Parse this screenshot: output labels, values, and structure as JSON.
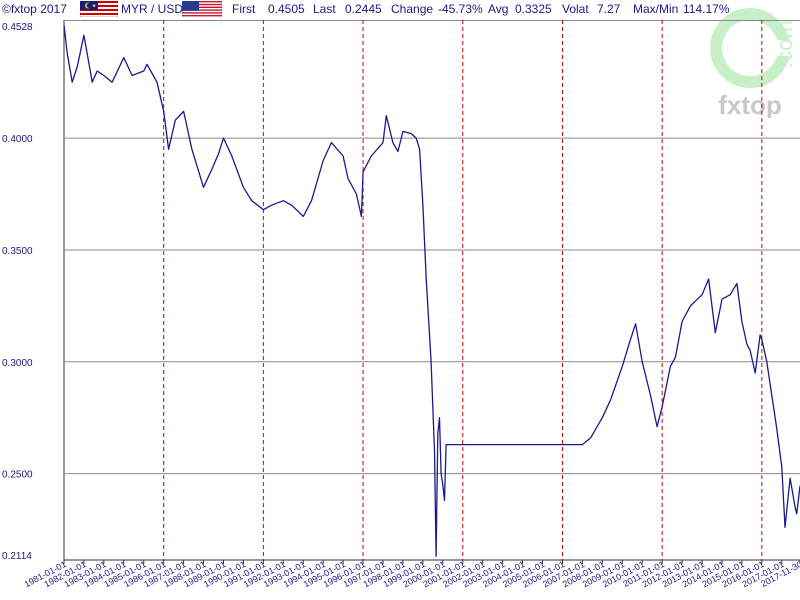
{
  "header": {
    "copyright": "©fxtop 2017",
    "pair": "MYR / USD",
    "first_label": "First",
    "first_value": "0.4505",
    "last_label": "Last",
    "last_value": "0.2445",
    "change_label": "Change",
    "change_value": "-45.73%",
    "avg_label": "Avg",
    "avg_value": "0.3325",
    "volat_label": "Volat",
    "volat_value": "7.27",
    "maxmin_label": "Max/Min",
    "maxmin_value": "114.17%"
  },
  "watermark": {
    "text": "fxtop",
    "sub": ".com"
  },
  "colors": {
    "line": "#1a1a8c",
    "grid": "#888888",
    "vgrid": "#cc0000",
    "label": "#1a1a80"
  },
  "chart_data": {
    "type": "line",
    "title": "",
    "xlabel": "",
    "ylabel": "",
    "ylim": [
      0.2114,
      0.4528
    ],
    "x_range": [
      "1981-01-01",
      "2017-11-30"
    ],
    "yticks": [
      "0.4528",
      "0.4000",
      "0.3500",
      "0.3000",
      "0.2500",
      "0.2114"
    ],
    "xticks": [
      "1981-01-01",
      "1982-01-01",
      "1983-01-01",
      "1984-01-01",
      "1985-01-01",
      "1986-01-01",
      "1987-01-01",
      "1988-01-01",
      "1989-01-01",
      "1990-01-01",
      "1991-01-01",
      "1992-01-01",
      "1993-01-01",
      "1994-01-01",
      "1995-01-01",
      "1996-01-01",
      "1997-01-01",
      "1998-01-01",
      "1999-01-01",
      "2000-01-01",
      "2001-01-01",
      "2002-01-01",
      "2003-01-01",
      "2004-01-01",
      "2005-01-01",
      "2006-01-01",
      "2007-01-01",
      "2008-01-01",
      "2009-01-01",
      "2010-01-01",
      "2011-01-01",
      "2012-01-01",
      "2013-01-01",
      "2014-01-01",
      "2015-01-01",
      "2016-01-01",
      "2017-01-01",
      "2017-11-30"
    ],
    "series": [
      {
        "points": [
          [
            "1981-01-01",
            0.4505
          ],
          [
            "1981-03-01",
            0.438
          ],
          [
            "1981-06-01",
            0.425
          ],
          [
            "1981-09-01",
            0.432
          ],
          [
            "1982-01-01",
            0.446
          ],
          [
            "1982-03-01",
            0.438
          ],
          [
            "1982-06-01",
            0.425
          ],
          [
            "1982-09-01",
            0.43
          ],
          [
            "1983-01-01",
            0.428
          ],
          [
            "1983-06-01",
            0.425
          ],
          [
            "1984-01-01",
            0.436
          ],
          [
            "1984-06-01",
            0.428
          ],
          [
            "1985-01-01",
            0.43
          ],
          [
            "1985-03-01",
            0.433
          ],
          [
            "1985-09-01",
            0.425
          ],
          [
            "1986-01-01",
            0.412
          ],
          [
            "1986-04-01",
            0.395
          ],
          [
            "1986-08-01",
            0.408
          ],
          [
            "1987-01-01",
            0.412
          ],
          [
            "1987-06-01",
            0.395
          ],
          [
            "1988-01-01",
            0.378
          ],
          [
            "1988-06-01",
            0.386
          ],
          [
            "1988-10-01",
            0.393
          ],
          [
            "1989-01-01",
            0.4
          ],
          [
            "1989-06-01",
            0.392
          ],
          [
            "1990-01-01",
            0.378
          ],
          [
            "1990-06-01",
            0.372
          ],
          [
            "1991-01-01",
            0.368
          ],
          [
            "1991-06-01",
            0.37
          ],
          [
            "1992-01-01",
            0.372
          ],
          [
            "1992-06-01",
            0.37
          ],
          [
            "1993-01-01",
            0.365
          ],
          [
            "1993-06-01",
            0.372
          ],
          [
            "1994-01-01",
            0.39
          ],
          [
            "1994-06-01",
            0.398
          ],
          [
            "1995-01-01",
            0.392
          ],
          [
            "1995-04-01",
            0.382
          ],
          [
            "1995-09-01",
            0.375
          ],
          [
            "1995-12-01",
            0.365
          ],
          [
            "1996-01-01",
            0.385
          ],
          [
            "1996-06-01",
            0.392
          ],
          [
            "1997-01-01",
            0.398
          ],
          [
            "1997-03-01",
            0.41
          ],
          [
            "1997-07-01",
            0.398
          ],
          [
            "1997-10-01",
            0.394
          ],
          [
            "1998-01-01",
            0.403
          ],
          [
            "1998-06-01",
            0.402
          ],
          [
            "1998-09-01",
            0.4
          ],
          [
            "1998-11-01",
            0.395
          ],
          [
            "1999-01-01",
            0.37
          ],
          [
            "1999-03-01",
            0.338
          ],
          [
            "1999-06-01",
            0.3
          ],
          [
            "1999-08-01",
            0.26
          ],
          [
            "1999-09-01",
            0.213
          ],
          [
            "1999-10-01",
            0.268
          ],
          [
            "1999-11-01",
            0.275
          ],
          [
            "1999-12-01",
            0.25
          ],
          [
            "2000-01-01",
            0.245
          ],
          [
            "2000-02-01",
            0.238
          ],
          [
            "2000-03-01",
            0.263
          ],
          [
            "2001-01-01",
            0.263
          ],
          [
            "2002-01-01",
            0.263
          ],
          [
            "2003-01-01",
            0.263
          ],
          [
            "2004-01-01",
            0.263
          ],
          [
            "2005-01-01",
            0.263
          ],
          [
            "2006-01-01",
            0.263
          ],
          [
            "2007-01-01",
            0.263
          ],
          [
            "2007-06-01",
            0.266
          ],
          [
            "2008-01-01",
            0.275
          ],
          [
            "2008-06-01",
            0.283
          ],
          [
            "2009-01-01",
            0.298
          ],
          [
            "2009-06-01",
            0.31
          ],
          [
            "2009-09-01",
            0.317
          ],
          [
            "2010-01-01",
            0.3
          ],
          [
            "2010-06-01",
            0.285
          ],
          [
            "2010-10-01",
            0.271
          ],
          [
            "2011-01-01",
            0.28
          ],
          [
            "2011-06-01",
            0.298
          ],
          [
            "2011-09-01",
            0.302
          ],
          [
            "2012-01-01",
            0.318
          ],
          [
            "2012-06-01",
            0.325
          ],
          [
            "2013-01-01",
            0.33
          ],
          [
            "2013-05-01",
            0.337
          ],
          [
            "2013-09-01",
            0.313
          ],
          [
            "2014-01-01",
            0.328
          ],
          [
            "2014-06-01",
            0.33
          ],
          [
            "2014-10-01",
            0.335
          ],
          [
            "2015-01-01",
            0.318
          ],
          [
            "2015-04-01",
            0.308
          ],
          [
            "2015-06-01",
            0.305
          ],
          [
            "2015-09-01",
            0.295
          ],
          [
            "2015-12-01",
            0.312
          ],
          [
            "2016-01-01",
            0.31
          ],
          [
            "2016-04-01",
            0.3
          ],
          [
            "2016-07-01",
            0.285
          ],
          [
            "2016-10-01",
            0.27
          ],
          [
            "2017-01-01",
            0.253
          ],
          [
            "2017-03-01",
            0.226
          ],
          [
            "2017-06-01",
            0.248
          ],
          [
            "2017-09-01",
            0.235
          ],
          [
            "2017-10-01",
            0.232
          ],
          [
            "2017-11-30",
            0.2445
          ]
        ]
      }
    ]
  }
}
